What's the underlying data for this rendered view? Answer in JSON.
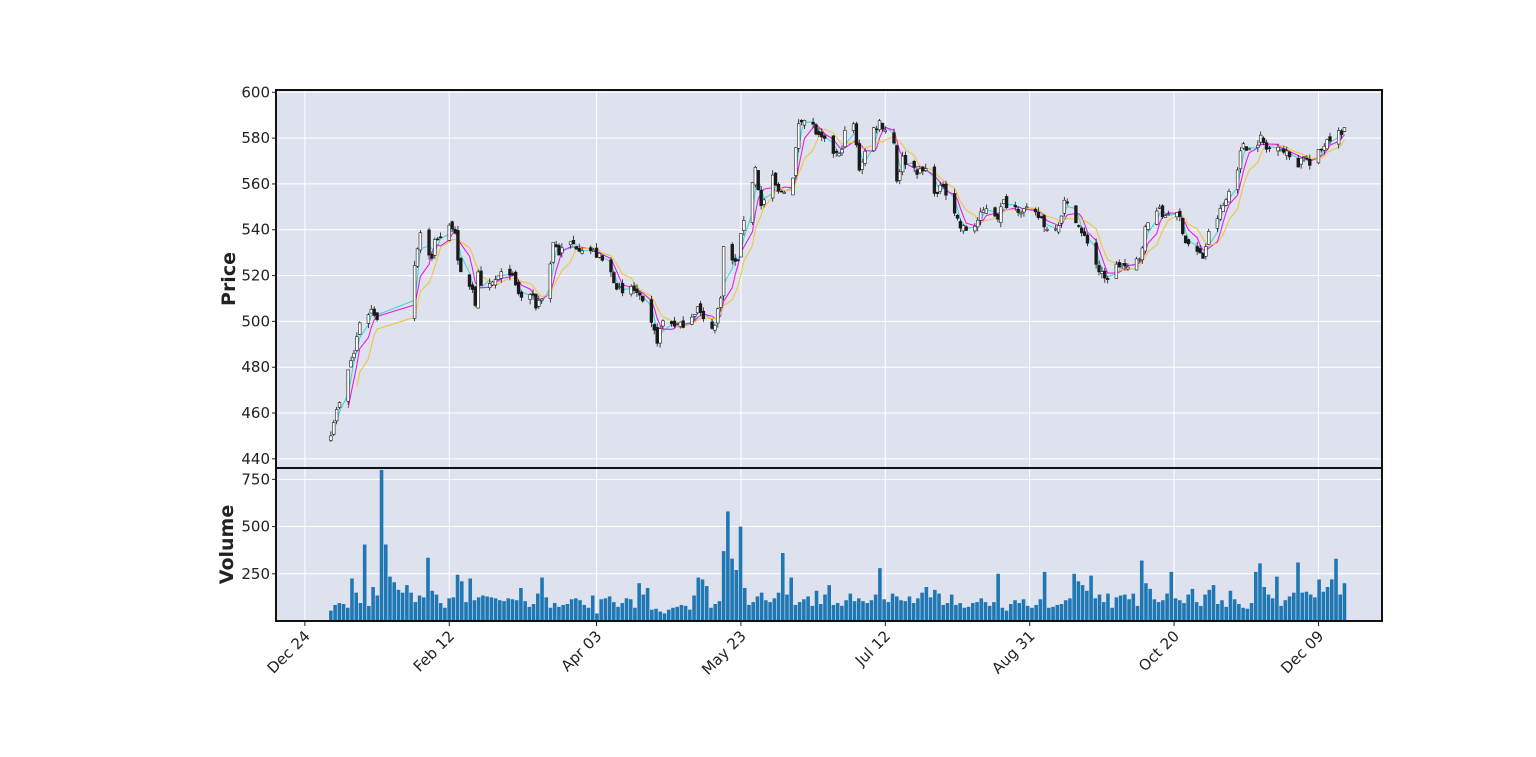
{
  "chart_data": [
    {
      "type": "candlestick",
      "panel": "price",
      "ylabel": "Price",
      "ylim": [
        436,
        601
      ],
      "yticks": [
        440,
        460,
        480,
        500,
        520,
        540,
        560,
        580,
        600
      ],
      "grid": true,
      "colors": {
        "background": "#dde2ee",
        "up": "#ffffff",
        "down": "#1a1a1a",
        "wick": "#1a1a1a",
        "ma_fast": "#40d8d0",
        "ma_mid": "#e81ee8",
        "ma_slow": "#f2c53d"
      },
      "close_path": [
        [
          "2024-01-02",
          452
        ],
        [
          "2024-01-03",
          457
        ],
        [
          "2024-01-05",
          464
        ],
        [
          "2024-01-08",
          478
        ],
        [
          "2024-01-09",
          483
        ],
        [
          "2024-01-10",
          486
        ],
        [
          "2024-01-12",
          500
        ],
        [
          "2024-01-16",
          505
        ],
        [
          "2024-01-18",
          502
        ],
        [
          "2024-01-31",
          525
        ],
        [
          "2024-02-01",
          533
        ],
        [
          "2024-02-02",
          539
        ],
        [
          "2024-02-06",
          527
        ],
        [
          "2024-02-07",
          535
        ],
        [
          "2024-02-08",
          537
        ],
        [
          "2024-02-09",
          537
        ],
        [
          "2024-02-13",
          542
        ],
        [
          "2024-02-14",
          540
        ],
        [
          "2024-02-15",
          525
        ],
        [
          "2024-02-16",
          520
        ],
        [
          "2024-02-20",
          515
        ],
        [
          "2024-02-21",
          508
        ],
        [
          "2024-02-22",
          520
        ],
        [
          "2024-02-23",
          514
        ],
        [
          "2024-02-26",
          515
        ],
        [
          "2024-02-28",
          518
        ],
        [
          "2024-03-01",
          520
        ],
        [
          "2024-03-04",
          522
        ],
        [
          "2024-03-06",
          515
        ],
        [
          "2024-03-08",
          510
        ],
        [
          "2024-03-11",
          512
        ],
        [
          "2024-03-13",
          507
        ],
        [
          "2024-03-15",
          511
        ],
        [
          "2024-03-18",
          525
        ],
        [
          "2024-03-19",
          535
        ],
        [
          "2024-03-21",
          530
        ],
        [
          "2024-03-25",
          534
        ],
        [
          "2024-03-27",
          533
        ],
        [
          "2024-04-01",
          531
        ],
        [
          "2024-04-04",
          528
        ],
        [
          "2024-04-08",
          521
        ],
        [
          "2024-04-10",
          516
        ],
        [
          "2024-04-12",
          511
        ],
        [
          "2024-04-15",
          515
        ],
        [
          "2024-04-17",
          512
        ],
        [
          "2024-04-19",
          507
        ],
        [
          "2024-04-22",
          498
        ],
        [
          "2024-04-24",
          492
        ],
        [
          "2024-04-26",
          500
        ],
        [
          "2024-04-30",
          499
        ],
        [
          "2024-05-02",
          498
        ],
        [
          "2024-05-06",
          503
        ],
        [
          "2024-05-08",
          506
        ],
        [
          "2024-05-10",
          500
        ],
        [
          "2024-05-14",
          498
        ],
        [
          "2024-05-16",
          512
        ],
        [
          "2024-05-17",
          532
        ],
        [
          "2024-05-21",
          525
        ],
        [
          "2024-05-22",
          528
        ],
        [
          "2024-05-24",
          545
        ],
        [
          "2024-05-28",
          567
        ],
        [
          "2024-05-30",
          550
        ],
        [
          "2024-06-03",
          562
        ],
        [
          "2024-06-05",
          556
        ],
        [
          "2024-06-07",
          558
        ],
        [
          "2024-06-10",
          562
        ],
        [
          "2024-06-12",
          587
        ],
        [
          "2024-06-13",
          589
        ],
        [
          "2024-06-17",
          585
        ],
        [
          "2024-06-19",
          580
        ],
        [
          "2024-06-21",
          578
        ],
        [
          "2024-06-24",
          574
        ],
        [
          "2024-06-26",
          572
        ],
        [
          "2024-06-28",
          582
        ],
        [
          "2024-07-01",
          586
        ],
        [
          "2024-07-02",
          576
        ],
        [
          "2024-07-03",
          567
        ],
        [
          "2024-07-05",
          574
        ],
        [
          "2024-07-08",
          584
        ],
        [
          "2024-07-10",
          587
        ],
        [
          "2024-07-12",
          584
        ],
        [
          "2024-07-15",
          578
        ],
        [
          "2024-07-16",
          562
        ],
        [
          "2024-07-18",
          571
        ],
        [
          "2024-07-22",
          567
        ],
        [
          "2024-07-24",
          565
        ],
        [
          "2024-07-26",
          566
        ],
        [
          "2024-07-30",
          555
        ],
        [
          "2024-08-01",
          560
        ],
        [
          "2024-08-05",
          548
        ],
        [
          "2024-08-07",
          541
        ],
        [
          "2024-08-09",
          540
        ],
        [
          "2024-08-12",
          542
        ],
        [
          "2024-08-14",
          546
        ],
        [
          "2024-08-16",
          550
        ],
        [
          "2024-08-20",
          546
        ],
        [
          "2024-08-22",
          552
        ],
        [
          "2024-08-26",
          550
        ],
        [
          "2024-08-28",
          549
        ],
        [
          "2024-08-30",
          548
        ],
        [
          "2024-09-04",
          545
        ],
        [
          "2024-09-06",
          540
        ],
        [
          "2024-09-10",
          543
        ],
        [
          "2024-09-12",
          552
        ],
        [
          "2024-09-16",
          545
        ],
        [
          "2024-09-18",
          538
        ],
        [
          "2024-09-20",
          535
        ],
        [
          "2024-09-24",
          522
        ],
        [
          "2024-09-26",
          518
        ],
        [
          "2024-09-30",
          524
        ],
        [
          "2024-10-02",
          525
        ],
        [
          "2024-10-04",
          522
        ],
        [
          "2024-10-08",
          528
        ],
        [
          "2024-10-10",
          540
        ],
        [
          "2024-10-14",
          550
        ],
        [
          "2024-10-16",
          546
        ],
        [
          "2024-10-18",
          548
        ],
        [
          "2024-10-22",
          545
        ],
        [
          "2024-10-24",
          535
        ],
        [
          "2024-10-28",
          530
        ],
        [
          "2024-10-30",
          528
        ],
        [
          "2024-11-01",
          538
        ],
        [
          "2024-11-05",
          548
        ],
        [
          "2024-11-07",
          553
        ],
        [
          "2024-11-11",
          568
        ],
        [
          "2024-11-13",
          578
        ],
        [
          "2024-11-15",
          575
        ],
        [
          "2024-11-19",
          580
        ],
        [
          "2024-11-21",
          575
        ],
        [
          "2024-11-25",
          578
        ],
        [
          "2024-11-27",
          574
        ],
        [
          "2024-12-02",
          569
        ],
        [
          "2024-12-04",
          573
        ],
        [
          "2024-12-06",
          568
        ],
        [
          "2024-12-10",
          575
        ],
        [
          "2024-12-12",
          580
        ],
        [
          "2024-12-16",
          582
        ],
        [
          "2024-12-18",
          584
        ]
      ]
    },
    {
      "type": "bar",
      "panel": "volume",
      "ylabel": "Volume",
      "ylim": [
        0,
        810
      ],
      "yticks": [
        250,
        500,
        750
      ],
      "grid": true,
      "colors": {
        "bar": "#1f77b4"
      },
      "x_start": "2024-01-02",
      "x_end": "2024-12-18",
      "values": [
        55,
        85,
        95,
        90,
        70,
        225,
        150,
        95,
        405,
        80,
        180,
        135,
        800,
        405,
        235,
        205,
        165,
        150,
        190,
        150,
        100,
        135,
        125,
        335,
        160,
        140,
        95,
        70,
        120,
        125,
        245,
        210,
        100,
        225,
        110,
        125,
        135,
        130,
        125,
        120,
        110,
        105,
        120,
        115,
        110,
        175,
        105,
        75,
        90,
        145,
        230,
        125,
        70,
        95,
        75,
        85,
        90,
        115,
        120,
        110,
        85,
        70,
        135,
        40,
        115,
        120,
        130,
        100,
        75,
        95,
        120,
        115,
        70,
        200,
        140,
        175,
        60,
        65,
        50,
        40,
        60,
        70,
        75,
        85,
        80,
        60,
        135,
        230,
        220,
        185,
        70,
        90,
        105,
        370,
        580,
        330,
        270,
        500,
        175,
        85,
        100,
        130,
        150,
        110,
        100,
        120,
        150,
        360,
        140,
        230,
        85,
        100,
        115,
        130,
        80,
        160,
        90,
        140,
        190,
        85,
        95,
        80,
        110,
        145,
        105,
        120,
        105,
        95,
        110,
        140,
        280,
        115,
        100,
        145,
        130,
        110,
        105,
        130,
        95,
        120,
        150,
        180,
        125,
        165,
        145,
        85,
        95,
        140,
        85,
        95,
        70,
        75,
        95,
        100,
        120,
        100,
        80,
        100,
        250,
        70,
        55,
        90,
        110,
        95,
        115,
        80,
        70,
        85,
        115,
        260,
        70,
        75,
        85,
        90,
        110,
        120,
        250,
        210,
        190,
        160,
        240,
        120,
        140,
        100,
        145,
        70,
        125,
        135,
        140,
        115,
        145,
        80,
        320,
        200,
        170,
        115,
        100,
        110,
        145,
        260,
        120,
        110,
        95,
        140,
        170,
        100,
        80,
        140,
        165,
        190,
        90,
        110,
        75,
        160,
        115,
        90,
        70,
        65,
        95,
        260,
        305,
        180,
        140,
        120,
        235,
        80,
        110,
        130,
        150,
        310,
        150,
        155,
        140,
        125,
        220,
        155,
        180,
        220,
        330,
        140,
        200
      ]
    }
  ],
  "x_axis": {
    "ticks": [
      {
        "date": "2023-12-24",
        "label": "Dec 24"
      },
      {
        "date": "2024-02-12",
        "label": "Feb 12"
      },
      {
        "date": "2024-04-03",
        "label": "Apr 03"
      },
      {
        "date": "2024-05-23",
        "label": "May 23"
      },
      {
        "date": "2024-07-12",
        "label": "Jul 12"
      },
      {
        "date": "2024-08-31",
        "label": "Aug 31"
      },
      {
        "date": "2024-10-20",
        "label": "Oct 20"
      },
      {
        "date": "2024-12-09",
        "label": "Dec 09"
      }
    ],
    "range": [
      "2023-12-14",
      "2024-12-31"
    ]
  }
}
